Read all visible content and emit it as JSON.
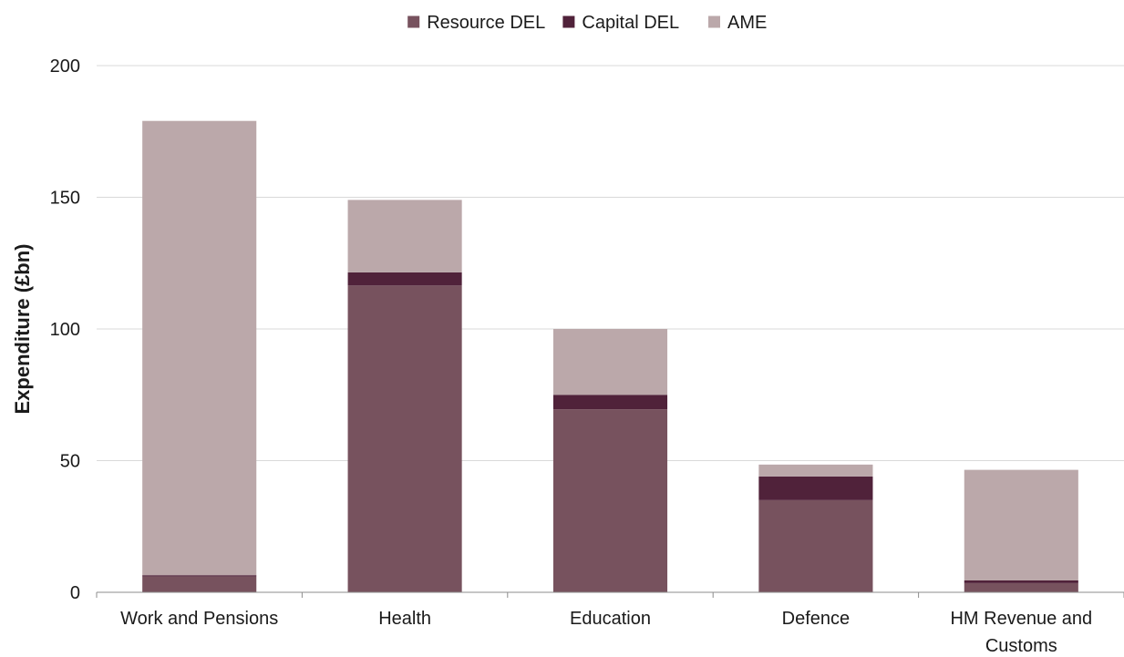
{
  "chart_data": {
    "type": "bar",
    "stacked": true,
    "categories": [
      [
        "Work and Pensions"
      ],
      [
        "Health"
      ],
      [
        "Education"
      ],
      [
        "Defence"
      ],
      [
        "HM Revenue and",
        "Customs"
      ]
    ],
    "series": [
      {
        "name": "Resource DEL",
        "color": "#77525e",
        "values": [
          6,
          116.5,
          69.5,
          35,
          3.5
        ]
      },
      {
        "name": "Capital DEL",
        "color": "#50223a",
        "values": [
          0.5,
          5,
          5.5,
          9,
          1
        ]
      },
      {
        "name": "AME",
        "color": "#bba8aa",
        "values": [
          172.5,
          27.5,
          25,
          4.5,
          42
        ]
      }
    ],
    "ylabel": "Expenditure (£bn)",
    "ylim": [
      0,
      200
    ],
    "yticks": [
      0,
      50,
      100,
      150,
      200
    ],
    "grid": true,
    "legend_position": "top-center"
  }
}
